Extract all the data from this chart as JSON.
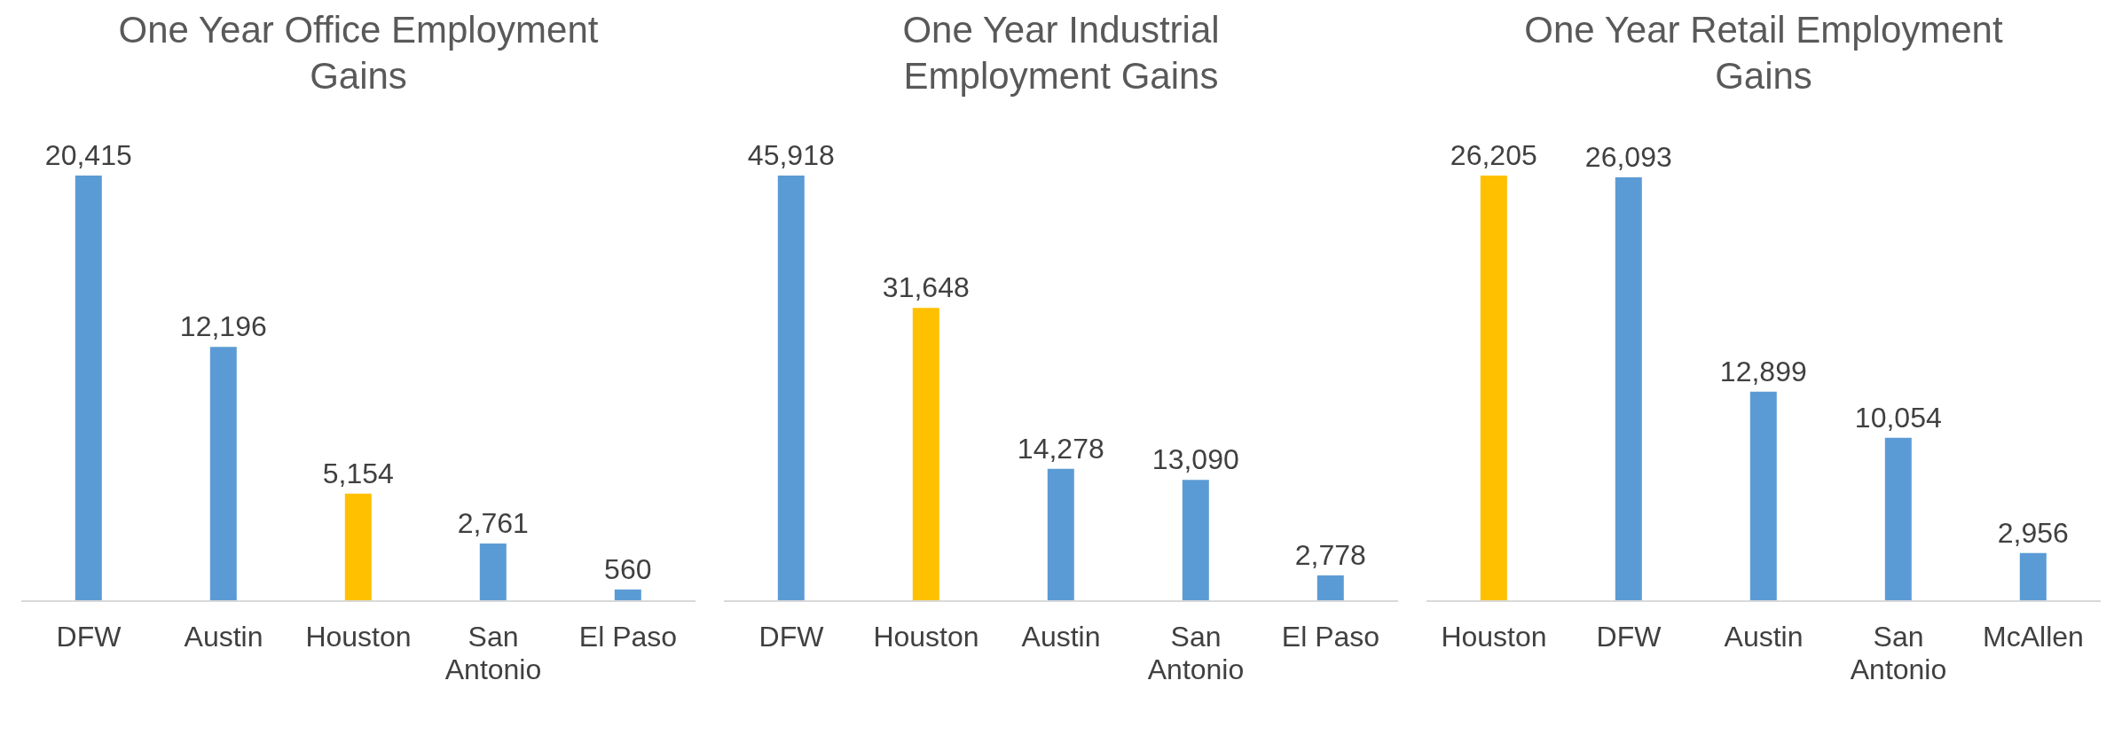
{
  "chart_data": [
    {
      "type": "bar",
      "title": "One Year Office Employment Gains",
      "categories": [
        "DFW",
        "Austin",
        "Houston",
        "San Antonio",
        "El Paso"
      ],
      "values": [
        20415,
        12196,
        5154,
        2761,
        560
      ],
      "value_labels": [
        "20,415",
        "12,196",
        "5,154",
        "2,761",
        "560"
      ],
      "colors": [
        "#5b9bd5",
        "#5b9bd5",
        "#ffc000",
        "#5b9bd5",
        "#5b9bd5"
      ]
    },
    {
      "type": "bar",
      "title": "One Year Industrial Employment Gains",
      "categories": [
        "DFW",
        "Houston",
        "Austin",
        "San Antonio",
        "El Paso"
      ],
      "values": [
        45918,
        31648,
        14278,
        13090,
        2778
      ],
      "value_labels": [
        "45,918",
        "31,648",
        "14,278",
        "13,090",
        "2,778"
      ],
      "colors": [
        "#5b9bd5",
        "#ffc000",
        "#5b9bd5",
        "#5b9bd5",
        "#5b9bd5"
      ]
    },
    {
      "type": "bar",
      "title": "One Year Retail Employment Gains",
      "categories": [
        "Houston",
        "DFW",
        "Austin",
        "San Antonio",
        "McAllen"
      ],
      "values": [
        26205,
        26093,
        12899,
        10054,
        2956
      ],
      "value_labels": [
        "26,205",
        "26,093",
        "12,899",
        "10,054",
        "2,956"
      ],
      "colors": [
        "#ffc000",
        "#5b9bd5",
        "#5b9bd5",
        "#5b9bd5",
        "#5b9bd5"
      ]
    }
  ]
}
